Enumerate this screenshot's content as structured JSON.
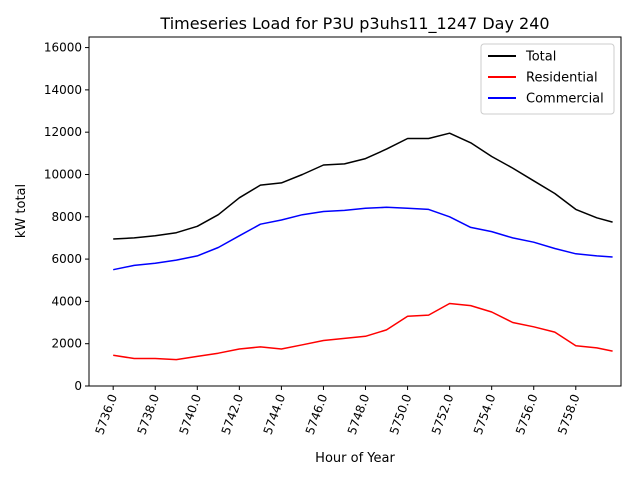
{
  "chart_data": {
    "type": "line",
    "title": "Timeseries Load for P3U p3uhs11_1247  Day 240",
    "xlabel": "Hour of Year",
    "ylabel": "kW total",
    "xlim": [
      5734.85,
      5760.15
    ],
    "ylim": [
      0,
      16500
    ],
    "xticks": [
      5736.0,
      5738.0,
      5740.0,
      5742.0,
      5744.0,
      5746.0,
      5748.0,
      5750.0,
      5752.0,
      5754.0,
      5756.0,
      5758.0
    ],
    "xtick_labels": [
      "5736.0",
      "5738.0",
      "5740.0",
      "5742.0",
      "5744.0",
      "5746.0",
      "5748.0",
      "5750.0",
      "5752.0",
      "5754.0",
      "5756.0",
      "5758.0"
    ],
    "yticks": [
      0,
      2000,
      4000,
      6000,
      8000,
      10000,
      12000,
      14000,
      16000
    ],
    "ytick_labels": [
      "0",
      "2000",
      "4000",
      "6000",
      "8000",
      "10000",
      "12000",
      "14000",
      "16000"
    ],
    "legend_position": "top-right",
    "x": [
      5736.0,
      5737.0,
      5738.0,
      5739.0,
      5740.0,
      5741.0,
      5742.0,
      5743.0,
      5744.0,
      5745.0,
      5746.0,
      5747.0,
      5748.0,
      5749.0,
      5750.0,
      5751.0,
      5752.0,
      5753.0,
      5754.0,
      5755.0,
      5756.0,
      5757.0,
      5758.0,
      5759.0,
      5759.75
    ],
    "series": [
      {
        "name": "Total",
        "color": "#000000",
        "values": [
          6950,
          7000,
          7100,
          7250,
          7550,
          8100,
          8900,
          9500,
          9600,
          10000,
          10450,
          10500,
          10750,
          11200,
          11700,
          11700,
          11950,
          11500,
          10850,
          10300,
          9700,
          9100,
          8350,
          7950,
          7750
        ]
      },
      {
        "name": "Residential",
        "color": "#ff0000",
        "values": [
          1450,
          1300,
          1300,
          1250,
          1400,
          1550,
          1750,
          1850,
          1750,
          1950,
          2150,
          2250,
          2350,
          2650,
          3300,
          3350,
          3900,
          3800,
          3500,
          3000,
          2800,
          2550,
          1900,
          1800,
          1650
        ]
      },
      {
        "name": "Commercial",
        "color": "#0000ff",
        "values": [
          5500,
          5700,
          5800,
          5950,
          6150,
          6550,
          7100,
          7650,
          7850,
          8100,
          8250,
          8300,
          8400,
          8450,
          8400,
          8350,
          8000,
          7500,
          7300,
          7000,
          6800,
          6500,
          6250,
          6150,
          6100
        ]
      }
    ]
  }
}
